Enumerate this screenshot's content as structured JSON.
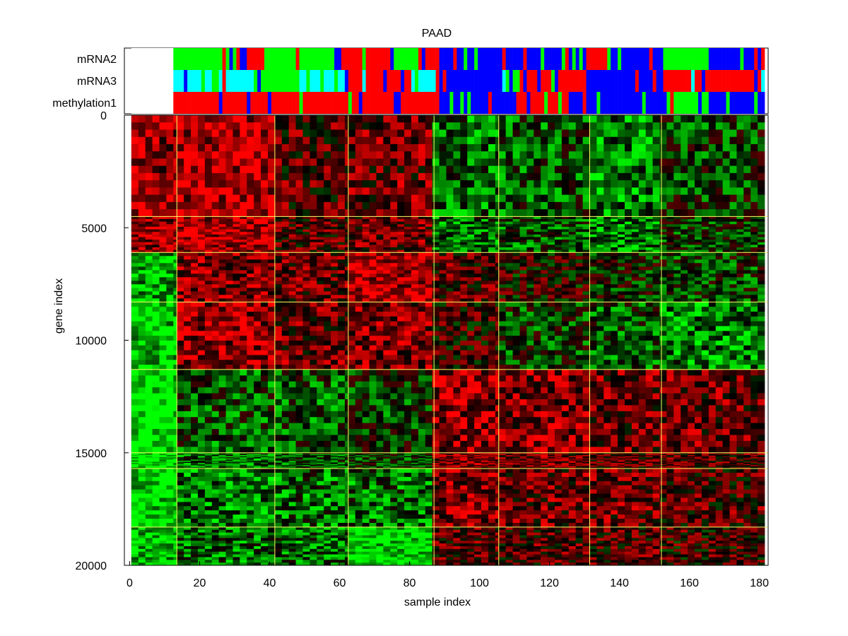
{
  "chart_data": {
    "type": "heatmap",
    "title": "PAAD",
    "xlabel": "sample index",
    "ylabel": "gene index",
    "xlim": [
      -1.5,
      182.5
    ],
    "ylim": [
      0,
      20000
    ],
    "y_inverted": true,
    "x_ticks": [
      0,
      20,
      40,
      60,
      80,
      100,
      120,
      140,
      160,
      180
    ],
    "y_ticks": [
      0,
      5000,
      10000,
      15000,
      20000
    ],
    "n_samples": 181,
    "n_genes": 20000,
    "colormap": {
      "low": "#00ff00",
      "mid": "#000000",
      "high": "#ff0000"
    },
    "sample_group_boundaries": [
      13.5,
      41.5,
      62.5,
      87,
      105.5,
      131.5,
      152
    ],
    "gene_group_boundaries": [
      4500,
      6100,
      8300,
      11300,
      15000,
      15700,
      18300
    ],
    "value_blocks": [
      [
        0.6,
        0.7,
        0.3,
        0.4,
        -0.4,
        -0.3,
        -0.5,
        -0.2
      ],
      [
        0.6,
        0.7,
        0.3,
        0.4,
        -0.4,
        -0.3,
        -0.5,
        -0.2
      ],
      [
        -0.7,
        0.5,
        0.4,
        0.7,
        0.3,
        0.1,
        -0.1,
        -0.2
      ],
      [
        -0.8,
        0.6,
        0.4,
        0.5,
        0.2,
        -0.2,
        -0.3,
        -0.5
      ],
      [
        -1.0,
        -0.3,
        -0.3,
        -0.2,
        0.6,
        0.5,
        0.4,
        0.4
      ],
      [
        -0.9,
        -0.4,
        -0.3,
        -0.2,
        0.5,
        0.4,
        0.3,
        0.3
      ],
      [
        -0.9,
        -0.5,
        -0.4,
        -0.4,
        0.5,
        0.4,
        0.4,
        0.3
      ],
      [
        -0.8,
        -0.4,
        -0.4,
        -0.9,
        0.3,
        0.3,
        0.3,
        0.2
      ]
    ],
    "annotation_tracks": [
      {
        "name": "mRNA2",
        "palette": [
          "#00ff00",
          "#ff0000",
          "#0000ff",
          "#ffffff"
        ],
        "segments": [
          [
            0,
            12,
            3
          ],
          [
            12,
            30,
            0
          ],
          [
            30,
            38,
            1
          ],
          [
            38,
            60,
            0
          ],
          [
            60,
            75,
            1
          ],
          [
            75,
            82,
            0
          ],
          [
            82,
            88,
            1
          ],
          [
            88,
            130,
            2
          ],
          [
            130,
            140,
            1
          ],
          [
            140,
            152,
            2
          ],
          [
            152,
            165,
            0
          ],
          [
            165,
            181,
            2
          ]
        ]
      },
      {
        "name": "mRNA3",
        "palette": [
          "#00ffff",
          "#00ff00",
          "#ff0000",
          "#0000ff",
          "#ffffff"
        ],
        "segments": [
          [
            0,
            12,
            4
          ],
          [
            12,
            35,
            0
          ],
          [
            35,
            48,
            1
          ],
          [
            48,
            62,
            0
          ],
          [
            62,
            80,
            2
          ],
          [
            80,
            88,
            0
          ],
          [
            88,
            110,
            3
          ],
          [
            110,
            130,
            2
          ],
          [
            130,
            152,
            3
          ],
          [
            152,
            170,
            2
          ],
          [
            170,
            181,
            2
          ]
        ]
      },
      {
        "name": "methylation1",
        "palette": [
          "#ff0000",
          "#00ff00",
          "#0000ff",
          "#ffffff"
        ],
        "segments": [
          [
            0,
            12,
            3
          ],
          [
            12,
            88,
            0
          ],
          [
            88,
            110,
            2
          ],
          [
            110,
            125,
            0
          ],
          [
            125,
            152,
            2
          ],
          [
            152,
            165,
            1
          ],
          [
            165,
            181,
            2
          ]
        ]
      }
    ]
  }
}
